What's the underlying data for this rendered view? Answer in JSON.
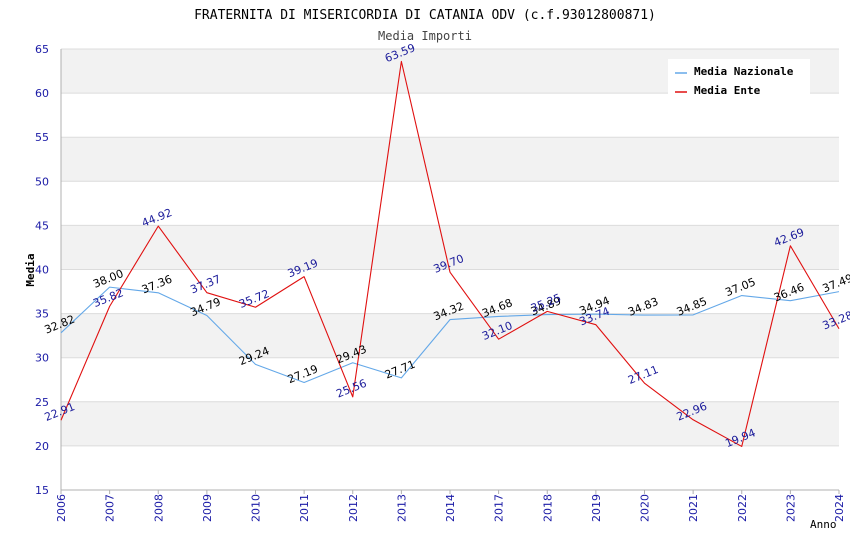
{
  "chart_data": {
    "type": "line",
    "title": "FRATERNITA DI MISERICORDIA DI CATANIA ODV (c.f.93012800871)",
    "subtitle": "Media Importi",
    "xlabel": "Anno",
    "ylabel": "Media",
    "ylim": [
      15,
      65
    ],
    "yticks": [
      15,
      20,
      25,
      30,
      35,
      40,
      45,
      50,
      55,
      60,
      65
    ],
    "categories": [
      "2006",
      "2007",
      "2008",
      "2009",
      "2010",
      "2011",
      "2012",
      "2013",
      "2014",
      "2017",
      "2018",
      "2019",
      "2020",
      "2021",
      "2022",
      "2023",
      "2024"
    ],
    "grid": true,
    "legend_position": "top-right",
    "series": [
      {
        "name": "Media Nazionale",
        "color": "#64a8e8",
        "label_color": "#000000",
        "values": [
          32.82,
          38.0,
          37.36,
          34.79,
          29.24,
          27.19,
          29.43,
          27.71,
          34.32,
          34.68,
          34.89,
          34.94,
          34.83,
          34.85,
          37.05,
          36.46,
          37.49
        ],
        "labels": [
          "32.82",
          "38.00",
          "37.36",
          "34.79",
          "29.24",
          "27.19",
          "29.43",
          "27.71",
          "34.32",
          "34.68",
          "34.89",
          "34.94",
          "34.83",
          "34.85",
          "37.05",
          "36.46",
          "37.49"
        ]
      },
      {
        "name": "Media Ente",
        "color": "#e01010",
        "label_color": "#1a1a9a",
        "values": [
          22.91,
          35.82,
          44.92,
          37.37,
          35.72,
          39.19,
          25.56,
          63.59,
          39.7,
          32.1,
          35.25,
          33.74,
          27.11,
          22.96,
          19.94,
          42.69,
          33.28
        ],
        "labels": [
          "22.91",
          "35.82",
          "44.92",
          "37.37",
          "35.72",
          "39.19",
          "25.56",
          "63.59",
          "39.70",
          "32.10",
          "35.25",
          "33.74",
          "27.11",
          "22.96",
          "19.94",
          "42.69",
          "33.28"
        ]
      }
    ]
  }
}
